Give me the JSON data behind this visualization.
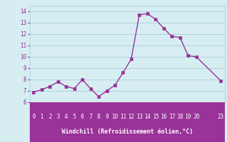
{
  "x": [
    0,
    1,
    2,
    3,
    4,
    5,
    6,
    7,
    8,
    9,
    10,
    11,
    12,
    13,
    14,
    15,
    16,
    17,
    18,
    19,
    20,
    23
  ],
  "y": [
    6.9,
    7.1,
    7.4,
    7.8,
    7.4,
    7.2,
    8.0,
    7.2,
    6.5,
    7.0,
    7.5,
    8.6,
    9.8,
    13.7,
    13.8,
    13.3,
    12.5,
    11.8,
    11.7,
    10.1,
    10.0,
    7.9
  ],
  "line_color": "#993399",
  "marker_color": "#993399",
  "bg_color": "#d6eef2",
  "grid_color": "#aaccdd",
  "xlabel": "Windchill (Refroidissement éolien,°C)",
  "xlabel_color": "#ffffff",
  "tick_color": "#993399",
  "xtick_label_color": "#ffffff",
  "ylim": [
    6,
    14.5
  ],
  "yticks": [
    6,
    7,
    8,
    9,
    10,
    11,
    12,
    13,
    14
  ],
  "xticks": [
    0,
    1,
    2,
    3,
    4,
    5,
    6,
    7,
    8,
    9,
    10,
    11,
    12,
    13,
    14,
    15,
    16,
    17,
    18,
    19,
    20,
    23
  ],
  "xlim": [
    -0.5,
    23.5
  ],
  "bottom_bar_color": "#993399",
  "font_name": "monospace"
}
